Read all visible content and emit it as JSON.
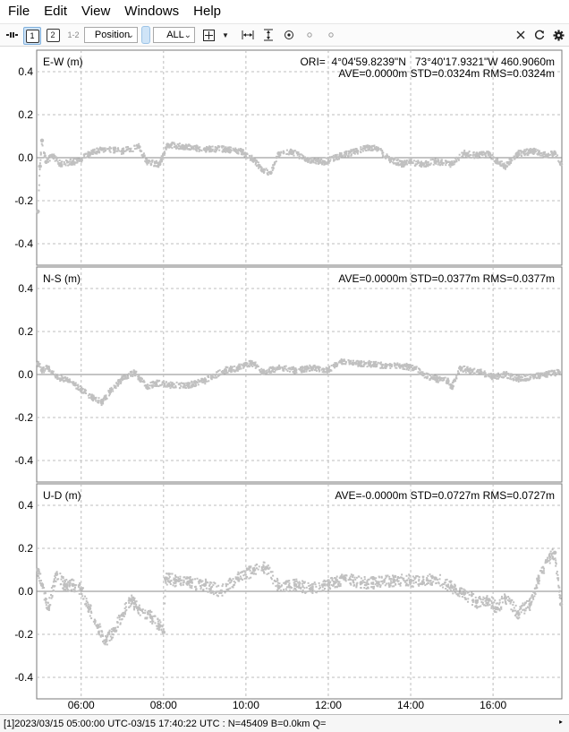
{
  "menu": [
    "File",
    "Edit",
    "View",
    "Windows",
    "Help"
  ],
  "toolbar": {
    "btn1": "1",
    "btn2": "2",
    "btn12": "1-2",
    "plot_type": "Position",
    "sat_filter": "ALL"
  },
  "origin": "ORI=  4°04'59.8239\"N   73°40'17.9321\"W 460.9060m",
  "status": "[1]2023/03/15 05:00:00 UTC-03/15 17:40:22 UTC : N=45409 B=0.0km Q=",
  "colors": {
    "series": "#c0c0c0",
    "grid": "#bdbdbd",
    "axis": "#7a7a7a",
    "zero": "#8a8a8a"
  },
  "chart_data": [
    {
      "type": "scatter",
      "title": "E-W (m)",
      "stats": "AVE=0.0000m STD=0.0324m RMS=0.0324m",
      "ylim": [
        -0.5,
        0.5
      ],
      "yticks": [
        -0.4,
        -0.2,
        0.0,
        0.2,
        0.4
      ],
      "ytick_labels": [
        "-0.4",
        "-0.2",
        "0.0",
        "0.2",
        "0.4"
      ],
      "xlim": [
        4.92,
        17.67
      ],
      "x": [
        4.95,
        5.0,
        5.05,
        5.15,
        5.3,
        5.5,
        5.8,
        6.0,
        6.2,
        6.5,
        7.0,
        7.4,
        7.6,
        7.9,
        8.1,
        8.5,
        9.0,
        9.5,
        9.9,
        10.2,
        10.4,
        10.6,
        10.8,
        11.1,
        11.5,
        11.9,
        12.3,
        12.7,
        13.0,
        13.2,
        13.5,
        13.8,
        14.0,
        14.3,
        14.6,
        15.0,
        15.3,
        15.6,
        15.9,
        16.1,
        16.3,
        16.6,
        17.0,
        17.3,
        17.5,
        17.65
      ],
      "y": [
        -0.25,
        -0.04,
        0.08,
        -0.02,
        0.01,
        -0.03,
        -0.02,
        -0.01,
        0.02,
        0.04,
        0.03,
        0.05,
        -0.02,
        -0.03,
        0.06,
        0.05,
        0.04,
        0.04,
        0.03,
        -0.01,
        -0.06,
        -0.07,
        0.02,
        0.03,
        -0.01,
        -0.02,
        0.01,
        0.03,
        0.05,
        0.04,
        -0.01,
        -0.03,
        -0.02,
        -0.03,
        -0.02,
        -0.03,
        0.02,
        0.01,
        0.02,
        -0.02,
        -0.04,
        0.02,
        0.03,
        0.01,
        0.02,
        -0.03
      ],
      "xticks": [
        6,
        8,
        10,
        12,
        14,
        16
      ],
      "xtick_labels": [
        "06:00",
        "08:00",
        "10:00",
        "12:00",
        "14:00",
        "16:00"
      ]
    },
    {
      "type": "scatter",
      "title": "N-S (m)",
      "stats": "AVE=0.0000m STD=0.0377m RMS=0.0377m",
      "ylim": [
        -0.5,
        0.5
      ],
      "yticks": [
        -0.4,
        -0.2,
        0.0,
        0.2,
        0.4
      ],
      "ytick_labels": [
        "-0.4",
        "-0.2",
        "0.0",
        "0.2",
        "0.4"
      ],
      "xlim": [
        4.92,
        17.67
      ],
      "x": [
        4.95,
        5.05,
        5.2,
        5.4,
        5.7,
        6.0,
        6.3,
        6.5,
        6.7,
        7.0,
        7.3,
        7.6,
        7.8,
        8.2,
        8.6,
        9.0,
        9.5,
        9.8,
        10.0,
        10.2,
        10.4,
        10.8,
        11.2,
        11.6,
        12.0,
        12.3,
        12.6,
        13.0,
        13.4,
        13.8,
        14.1,
        14.3,
        14.6,
        14.9,
        15.0,
        15.2,
        15.4,
        15.7,
        16.0,
        16.3,
        16.6,
        17.0,
        17.3,
        17.6
      ],
      "y": [
        0.05,
        0.02,
        0.03,
        -0.01,
        -0.03,
        -0.07,
        -0.11,
        -0.13,
        -0.08,
        -0.02,
        0.01,
        -0.06,
        -0.04,
        -0.05,
        -0.05,
        -0.03,
        0.02,
        0.03,
        0.05,
        0.05,
        0.01,
        0.03,
        0.02,
        0.03,
        0.02,
        0.06,
        0.05,
        0.05,
        0.04,
        0.04,
        0.03,
        0.0,
        -0.02,
        -0.03,
        -0.06,
        0.03,
        0.02,
        0.01,
        -0.01,
        0.0,
        -0.02,
        -0.01,
        0.0,
        0.01
      ],
      "xticks": [
        6,
        8,
        10,
        12,
        14,
        16
      ],
      "xtick_labels": [
        "06:00",
        "08:00",
        "10:00",
        "12:00",
        "14:00",
        "16:00"
      ]
    },
    {
      "type": "scatter",
      "title": "U-D (m)",
      "stats": "AVE=-0.0000m STD=0.0727m RMS=0.0727m",
      "ylim": [
        -0.5,
        0.5
      ],
      "yticks": [
        -0.4,
        -0.2,
        0.0,
        0.2,
        0.4
      ],
      "ytick_labels": [
        "-0.4",
        "-0.2",
        "0.0",
        "0.2",
        "0.4"
      ],
      "xlim": [
        4.92,
        17.67
      ],
      "x": [
        4.95,
        5.05,
        5.2,
        5.4,
        5.6,
        5.8,
        6.0,
        6.2,
        6.4,
        6.6,
        6.8,
        7.0,
        7.2,
        7.4,
        7.7,
        7.9,
        8.0,
        8.05,
        8.3,
        8.6,
        9.0,
        9.4,
        9.8,
        10.2,
        10.5,
        10.8,
        11.2,
        11.6,
        12.0,
        12.4,
        12.8,
        13.2,
        13.6,
        14.0,
        14.3,
        14.6,
        15.0,
        15.3,
        15.6,
        15.9,
        16.1,
        16.3,
        16.6,
        16.9,
        17.1,
        17.3,
        17.5,
        17.65
      ],
      "y": [
        0.1,
        0.03,
        -0.08,
        0.08,
        0.03,
        0.03,
        0.01,
        -0.08,
        -0.16,
        -0.23,
        -0.18,
        -0.11,
        -0.04,
        -0.08,
        -0.12,
        -0.16,
        -0.19,
        0.06,
        0.05,
        0.04,
        0.03,
        0.0,
        0.06,
        0.1,
        0.11,
        0.02,
        0.03,
        0.01,
        0.03,
        0.06,
        0.04,
        0.04,
        0.05,
        0.05,
        0.04,
        0.06,
        0.02,
        -0.01,
        -0.05,
        -0.04,
        -0.08,
        -0.03,
        -0.1,
        -0.06,
        0.05,
        0.14,
        0.18,
        -0.06
      ],
      "xticks": [
        6,
        8,
        10,
        12,
        14,
        16
      ],
      "xtick_labels": [
        "06:00",
        "08:00",
        "10:00",
        "12:00",
        "14:00",
        "16:00"
      ]
    }
  ]
}
